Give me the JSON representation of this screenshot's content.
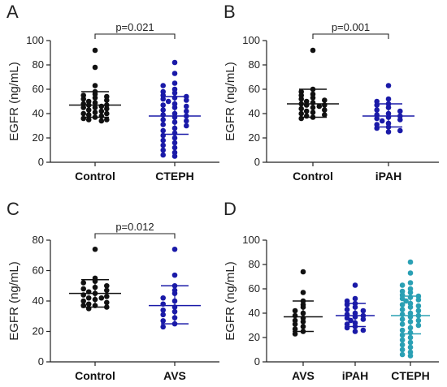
{
  "chart_data": [
    {
      "panel": "A",
      "type": "scatter",
      "ylabel": "EGFR (ng/mL)",
      "ylim": [
        0,
        100
      ],
      "yticks": [
        0,
        20,
        40,
        60,
        80,
        100
      ],
      "categories": [
        "Control",
        "CTEPH"
      ],
      "pvalue": "p=0.021",
      "series": [
        {
          "values": [
            92,
            78,
            63,
            58,
            56,
            55,
            54,
            53,
            52,
            51,
            50,
            49,
            48,
            47,
            47,
            46,
            45,
            45,
            44,
            43,
            42,
            41,
            40,
            40,
            39,
            38,
            37,
            36,
            35,
            35,
            34
          ],
          "mean": 47,
          "sd_upper": 58,
          "sd_lower": 37,
          "color": "#111111"
        },
        {
          "values": [
            82,
            73,
            65,
            63,
            60,
            58,
            57,
            55,
            54,
            53,
            52,
            51,
            50,
            48,
            47,
            46,
            45,
            43,
            42,
            40,
            39,
            38,
            37,
            35,
            34,
            33,
            31,
            30,
            28,
            26,
            24,
            22,
            20,
            18,
            16,
            14,
            12,
            10,
            8,
            6,
            5
          ],
          "mean": 38,
          "sd_upper": 54,
          "sd_lower": 23,
          "color": "#1a1aa8"
        }
      ]
    },
    {
      "panel": "B",
      "type": "scatter",
      "ylabel": "EGFR (ng/mL)",
      "ylim": [
        0,
        100
      ],
      "yticks": [
        0,
        20,
        40,
        60,
        80,
        100
      ],
      "categories": [
        "Control",
        "iPAH"
      ],
      "pvalue": "p=0.001",
      "series": [
        {
          "values": [
            92,
            60,
            58,
            56,
            55,
            53,
            52,
            51,
            50,
            49,
            48,
            47,
            47,
            46,
            45,
            44,
            43,
            42,
            41,
            40,
            39,
            38,
            37,
            36
          ],
          "mean": 48,
          "sd_upper": 60,
          "sd_lower": 37,
          "color": "#111111"
        },
        {
          "values": [
            63,
            52,
            50,
            48,
            47,
            45,
            43,
            42,
            40,
            39,
            38,
            37,
            36,
            35,
            34,
            32,
            31,
            29,
            28,
            26,
            25
          ],
          "mean": 38,
          "sd_upper": 48,
          "sd_lower": 29,
          "color": "#1a1aa8"
        }
      ]
    },
    {
      "panel": "C",
      "type": "scatter",
      "ylabel": "EGFR (ng/mL)",
      "ylim": [
        0,
        80
      ],
      "yticks": [
        0,
        20,
        40,
        60,
        80
      ],
      "categories": [
        "Control",
        "AVS"
      ],
      "pvalue": "p=0.012",
      "series": [
        {
          "values": [
            74,
            55,
            53,
            52,
            50,
            49,
            48,
            47,
            46,
            45,
            44,
            43,
            42,
            42,
            41,
            40,
            39,
            38,
            37,
            37,
            36,
            35
          ],
          "mean": 45,
          "sd_upper": 54,
          "sd_lower": 36,
          "color": "#111111"
        },
        {
          "values": [
            74,
            57,
            50,
            47,
            45,
            42,
            40,
            38,
            36,
            34,
            33,
            31,
            29,
            27,
            25,
            23
          ],
          "mean": 37,
          "sd_upper": 50,
          "sd_lower": 25,
          "color": "#1a1aa8"
        }
      ]
    },
    {
      "panel": "D",
      "type": "scatter",
      "ylabel": "EGFR (ng/mL)",
      "ylim": [
        0,
        100
      ],
      "yticks": [
        0,
        20,
        40,
        60,
        80,
        100
      ],
      "categories": [
        "AVS",
        "iPAH",
        "CTEPH"
      ],
      "series": [
        {
          "values": [
            74,
            57,
            50,
            47,
            45,
            42,
            40,
            38,
            36,
            34,
            33,
            31,
            29,
            27,
            25,
            23
          ],
          "mean": 37,
          "sd_upper": 50,
          "sd_lower": 25,
          "color": "#111111"
        },
        {
          "values": [
            63,
            52,
            50,
            48,
            47,
            45,
            43,
            42,
            40,
            39,
            38,
            37,
            36,
            35,
            34,
            32,
            31,
            29,
            28,
            26,
            25
          ],
          "mean": 38,
          "sd_upper": 48,
          "sd_lower": 29,
          "color": "#1a1aa8"
        },
        {
          "values": [
            82,
            73,
            65,
            63,
            60,
            58,
            57,
            55,
            54,
            53,
            52,
            51,
            50,
            48,
            47,
            46,
            45,
            43,
            42,
            40,
            39,
            38,
            37,
            35,
            34,
            33,
            31,
            30,
            28,
            26,
            24,
            22,
            20,
            18,
            16,
            14,
            12,
            10,
            8,
            6,
            5
          ],
          "mean": 38,
          "sd_upper": 54,
          "sd_lower": 23,
          "color": "#2aa0b4"
        }
      ]
    }
  ]
}
